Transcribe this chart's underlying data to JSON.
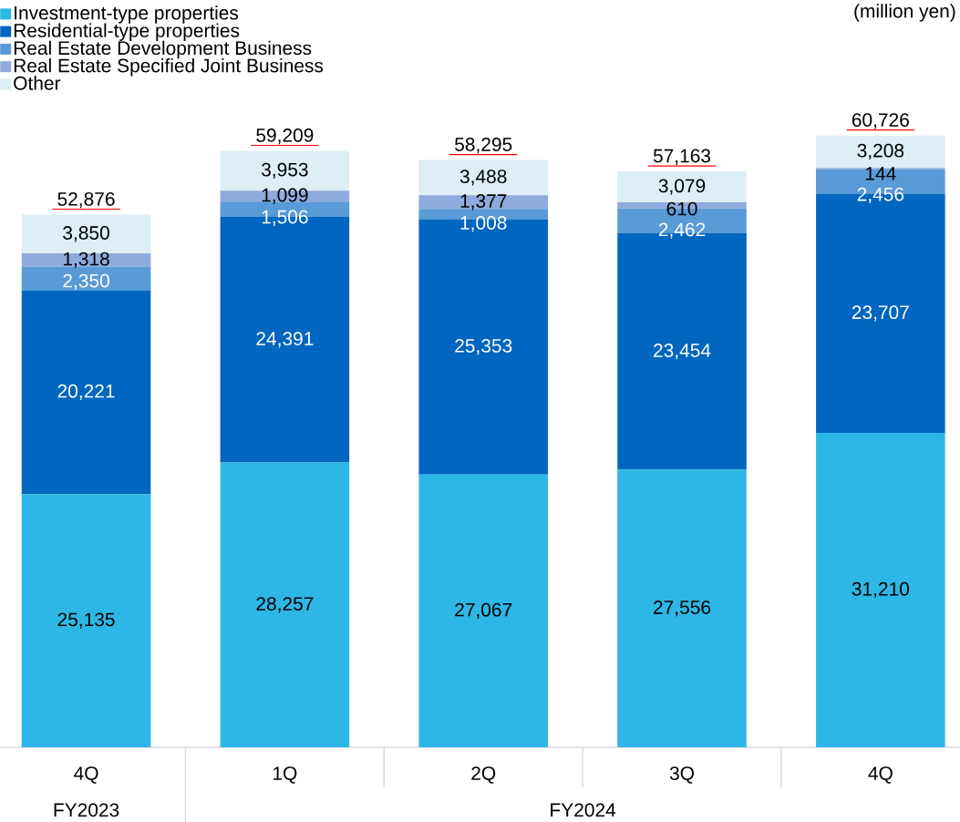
{
  "chart_data": {
    "type": "bar",
    "stacked": true,
    "categories": [
      "4Q",
      "1Q",
      "2Q",
      "3Q",
      "4Q"
    ],
    "series": [
      {
        "name": "Investment-type properties",
        "color": "#2db7e6",
        "values": [
          25135,
          28257,
          27067,
          27556,
          31210
        ],
        "value_labels": [
          "25,135",
          "28,257",
          "27,067",
          "27,556",
          "31,210"
        ]
      },
      {
        "name": "Residential-type properties",
        "color": "#0066bf",
        "values": [
          20221,
          24391,
          25353,
          23454,
          23707
        ],
        "value_labels": [
          "20,221",
          "24,391",
          "25,353",
          "23,454",
          "23,707"
        ]
      },
      {
        "name": "Real Estate Development Business",
        "color": "#5a9ad6",
        "values": [
          2350,
          1506,
          1008,
          2462,
          2456
        ],
        "value_labels": [
          "2,350",
          "1,506",
          "1,008",
          "2,462",
          "2,456"
        ]
      },
      {
        "name": "Real Estate Specified Joint Business",
        "color": "#8faadc",
        "values": [
          1318,
          1099,
          1377,
          610,
          144
        ],
        "value_labels": [
          "1,318",
          "1,099",
          "1,377",
          "610",
          "144"
        ]
      },
      {
        "name": "Other",
        "color": "#ddeef4",
        "values": [
          3850,
          3953,
          3488,
          3079,
          3208
        ],
        "value_labels": [
          "3,850",
          "3,953",
          "3,488",
          "3,079",
          "3,208"
        ]
      }
    ],
    "totals": [
      "52,876",
      "59,209",
      "58,295",
      "57,163",
      "60,726"
    ],
    "legend": "top left",
    "annotations": [
      "(million yen)",
      "FY2023",
      "FY2024"
    ]
  }
}
